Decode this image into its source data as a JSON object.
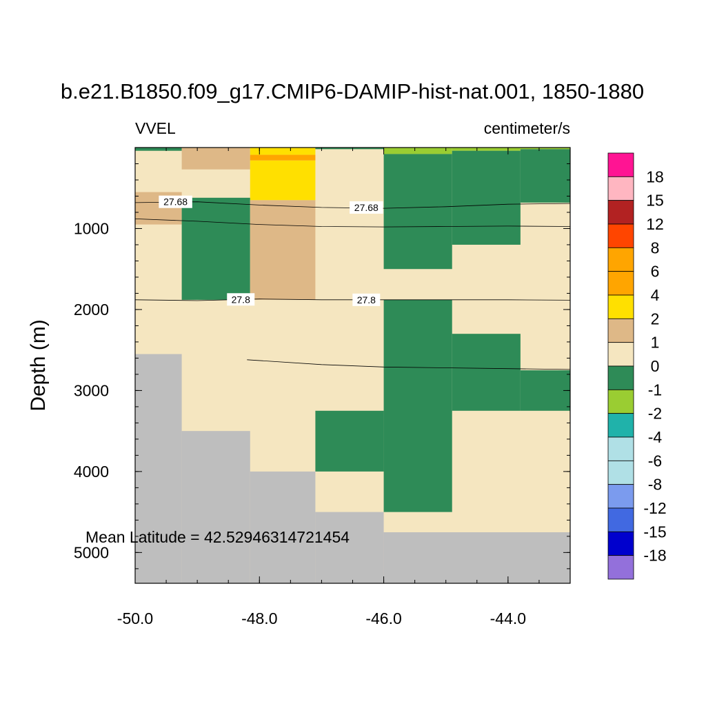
{
  "chart_data": {
    "type": "heatmap",
    "title": "b.e21.B1850.f09_g17.CMIP6-DAMIP-hist-nat.001, 1850-1880",
    "left_label": "VVEL",
    "right_label": "centimeter/s",
    "ylabel": "Depth (m)",
    "xlabel": "",
    "annotation": "Mean Latitude = 42.52946314721454",
    "xlim": [
      -50.0,
      -43.0
    ],
    "ylim": [
      5380,
      0
    ],
    "y_reversed": true,
    "x_ticks": [
      {
        "value": -50,
        "label": "-50.0"
      },
      {
        "value": -48,
        "label": "-48.0"
      },
      {
        "value": -46,
        "label": "-46.0"
      },
      {
        "value": -44,
        "label": "-44.0"
      }
    ],
    "y_ticks": [
      {
        "value": 1000,
        "label": "1000"
      },
      {
        "value": 2000,
        "label": "2000"
      },
      {
        "value": 3000,
        "label": "3000"
      },
      {
        "value": 4000,
        "label": "4000"
      },
      {
        "value": 5000,
        "label": "5000"
      }
    ],
    "land_color": "#BEBEBE",
    "colorbar": {
      "colors": [
        "#9370DB",
        "#0000CD",
        "#4169E1",
        "#7B9BEE",
        "#B0E0E6",
        "#B0E0E6",
        "#20B2AA",
        "#9ACD32",
        "#2E8B57",
        "#F5E6C0",
        "#DEB887",
        "#FFE000",
        "#FFA500",
        "#FFA500",
        "#FF4500",
        "#B22222",
        "#FFB6C1",
        "#FF1493"
      ],
      "labels": [
        "-18",
        "-15",
        "-12",
        "-8",
        "-6",
        "-4",
        "-2",
        "-1",
        "0",
        "1",
        "2",
        "4",
        "6",
        "8",
        "12",
        "15",
        "18"
      ]
    },
    "cells": [
      {
        "x0": -50.0,
        "x1": -49.25,
        "z0": 0,
        "z1": 40,
        "v": -0.5
      },
      {
        "x0": -49.25,
        "x1": -48.15,
        "z0": 0,
        "z1": 270,
        "v": 1.5
      },
      {
        "x0": -48.15,
        "x1": -47.1,
        "z0": 0,
        "z1": 90,
        "v": 3
      },
      {
        "x0": -48.15,
        "x1": -47.1,
        "z0": 90,
        "z1": 160,
        "v": 5
      },
      {
        "x0": -48.15,
        "x1": -47.1,
        "z0": 160,
        "z1": 650,
        "v": 3
      },
      {
        "x0": -47.1,
        "x1": -46.0,
        "z0": 0,
        "z1": 20,
        "v": -0.5
      },
      {
        "x0": -46.0,
        "x1": -44.9,
        "z0": 0,
        "z1": 80,
        "v": -1.5
      },
      {
        "x0": -44.9,
        "x1": -43.8,
        "z0": 0,
        "z1": 40,
        "v": -1.5
      },
      {
        "x0": -43.8,
        "x1": -43.0,
        "z0": 0,
        "z1": 20,
        "v": -1.5
      },
      {
        "x0": -46.0,
        "x1": -44.9,
        "z0": 80,
        "z1": 1500,
        "v": -0.5
      },
      {
        "x0": -44.9,
        "x1": -43.8,
        "z0": 40,
        "z1": 1200,
        "v": -0.5
      },
      {
        "x0": -43.8,
        "x1": -43.0,
        "z0": 20,
        "z1": 680,
        "v": -0.5
      },
      {
        "x0": -50.0,
        "x1": -49.25,
        "z0": 550,
        "z1": 950,
        "v": 1.5
      },
      {
        "x0": -49.25,
        "x1": -48.15,
        "z0": 620,
        "z1": 1880,
        "v": -0.5
      },
      {
        "x0": -48.15,
        "x1": -47.1,
        "z0": 650,
        "z1": 1880,
        "v": 1.5
      },
      {
        "x0": -46.0,
        "x1": -44.9,
        "z0": 1880,
        "z1": 4500,
        "v": -0.5
      },
      {
        "x0": -44.9,
        "x1": -43.8,
        "z0": 2300,
        "z1": 3250,
        "v": -0.5
      },
      {
        "x0": -43.8,
        "x1": -43.0,
        "z0": 2750,
        "z1": 3250,
        "v": -0.5
      },
      {
        "x0": -47.1,
        "x1": -46.0,
        "z0": 3250,
        "z1": 4000,
        "v": -0.5
      }
    ],
    "land": [
      {
        "x0": -50.0,
        "x1": -49.25,
        "z0": 2550,
        "z1": 5380
      },
      {
        "x0": -49.25,
        "x1": -48.15,
        "z0": 3500,
        "z1": 5380
      },
      {
        "x0": -48.15,
        "x1": -47.1,
        "z0": 4000,
        "z1": 5380
      },
      {
        "x0": -47.1,
        "x1": -46.0,
        "z0": 4500,
        "z1": 5380
      },
      {
        "x0": -46.0,
        "x1": -43.0,
        "z0": 4750,
        "z1": 5380
      }
    ],
    "contours": [
      {
        "level": "27.68",
        "points": [
          [
            -50.0,
            680
          ],
          [
            -49.0,
            670
          ],
          [
            -48.0,
            710
          ],
          [
            -47.0,
            740
          ],
          [
            -46.0,
            750
          ],
          [
            -45.0,
            730
          ],
          [
            -44.0,
            700
          ],
          [
            -43.0,
            690
          ]
        ],
        "label_positions": [
          [
            -49.35,
            670
          ],
          [
            -46.28,
            740
          ]
        ]
      },
      {
        "level": "",
        "points": [
          [
            -50.0,
            880
          ],
          [
            -49.0,
            910
          ],
          [
            -48.0,
            950
          ],
          [
            -47.0,
            975
          ],
          [
            -46.0,
            980
          ],
          [
            -45.0,
            975
          ],
          [
            -44.0,
            970
          ],
          [
            -43.0,
            975
          ]
        ],
        "label_positions": []
      },
      {
        "level": "27.8",
        "points": [
          [
            -50.0,
            1880
          ],
          [
            -49.0,
            1890
          ],
          [
            -48.0,
            1870
          ],
          [
            -47.0,
            1880
          ],
          [
            -46.0,
            1880
          ],
          [
            -45.0,
            1880
          ],
          [
            -44.0,
            1880
          ],
          [
            -43.0,
            1885
          ]
        ],
        "label_positions": [
          [
            -48.3,
            1875
          ],
          [
            -46.28,
            1880
          ]
        ]
      },
      {
        "level": "",
        "points": [
          [
            -48.2,
            2620
          ],
          [
            -47.0,
            2680
          ],
          [
            -46.0,
            2710
          ],
          [
            -45.0,
            2720
          ],
          [
            -44.0,
            2730
          ],
          [
            -43.0,
            2740
          ]
        ],
        "label_positions": []
      }
    ]
  }
}
